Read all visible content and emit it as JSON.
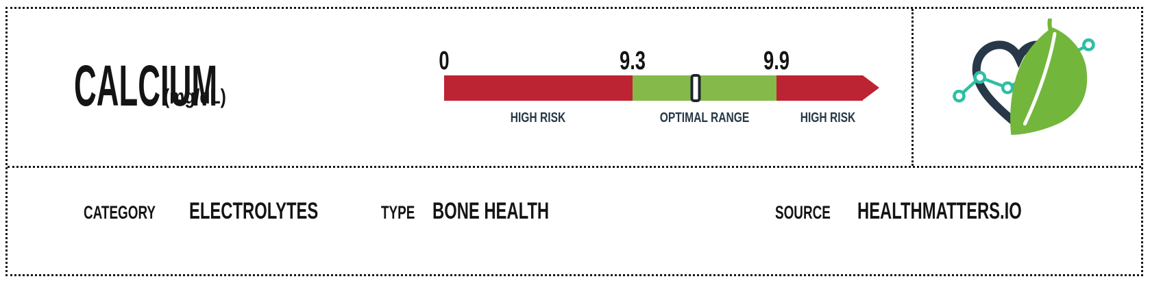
{
  "card": {
    "title": "CALCIUM",
    "unit": "(mg/dL)"
  },
  "chart_data": {
    "type": "bar",
    "subtype": "range-gauge",
    "title": "CALCIUM",
    "unit": "mg/dL",
    "orientation": "horizontal",
    "axis_ticks": [
      "0",
      "9.3",
      "9.9"
    ],
    "zones": [
      {
        "label": "HIGH RISK",
        "range_min": 0,
        "range_max": 9.3,
        "color_key": "red",
        "width_pct": 45.0
      },
      {
        "label": "OPTIMAL RANGE",
        "range_min": 9.3,
        "range_max": 9.9,
        "color_key": "green",
        "width_pct": 34.4
      },
      {
        "label": "HIGH RISK",
        "range_min": 9.9,
        "range_max": null,
        "color_key": "red",
        "width_pct": 20.6
      }
    ],
    "marker": {
      "position_pct": 60.1,
      "value_estimate": 9.56
    },
    "arrow_end": true
  },
  "fields": [
    {
      "label": "CATEGORY",
      "value": "ELECTROLYTES"
    },
    {
      "label": "TYPE",
      "value": "BONE HEALTH"
    },
    {
      "label": "SOURCE",
      "value": "HEALTHMATTERS.IO"
    }
  ],
  "logo": {
    "name": "healthmatters-logo",
    "parts": [
      "heart-icon",
      "leaf-icon",
      "chart-line-icon"
    ]
  },
  "colors": {
    "red": "#bd2433",
    "green": "#85ba4b",
    "navy": "#273848",
    "teal": "#2ebfa5",
    "leaf": "#73b63c",
    "ink": "#141414",
    "border": "#161616",
    "markerborder": "#20262e"
  }
}
